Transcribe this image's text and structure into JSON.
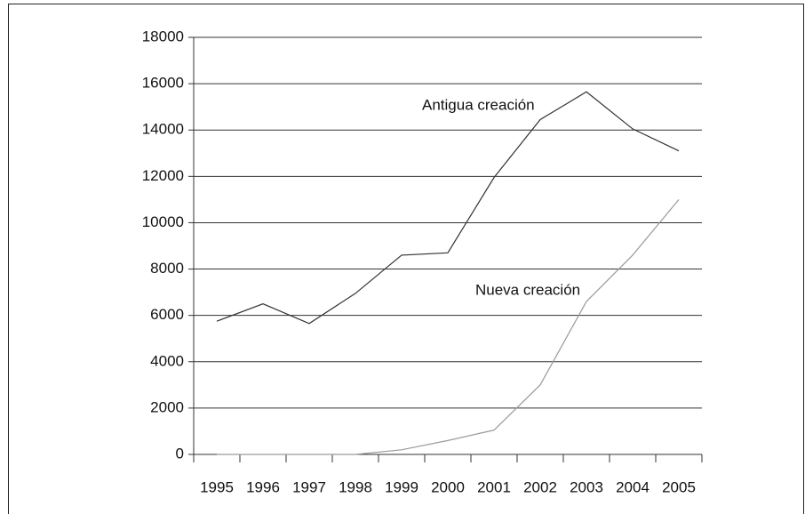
{
  "chart_data": {
    "type": "line",
    "categories": [
      "1995",
      "1996",
      "1997",
      "1998",
      "1999",
      "2000",
      "2001",
      "2002",
      "2003",
      "2004",
      "2005"
    ],
    "series": [
      {
        "name": "Antigua creación",
        "color": "#333333",
        "values": [
          5750,
          6500,
          5650,
          6950,
          8600,
          8700,
          11950,
          14450,
          15650,
          14050,
          13100
        ]
      },
      {
        "name": "Nueva creación",
        "color": "#9a9a9a",
        "values": [
          0,
          0,
          0,
          0,
          200,
          600,
          1050,
          3000,
          6600,
          8600,
          11000
        ]
      }
    ],
    "ylim": [
      0,
      18000
    ],
    "yticks": [
      0,
      2000,
      4000,
      6000,
      8000,
      10000,
      12000,
      14000,
      16000,
      18000
    ],
    "grid": true
  }
}
